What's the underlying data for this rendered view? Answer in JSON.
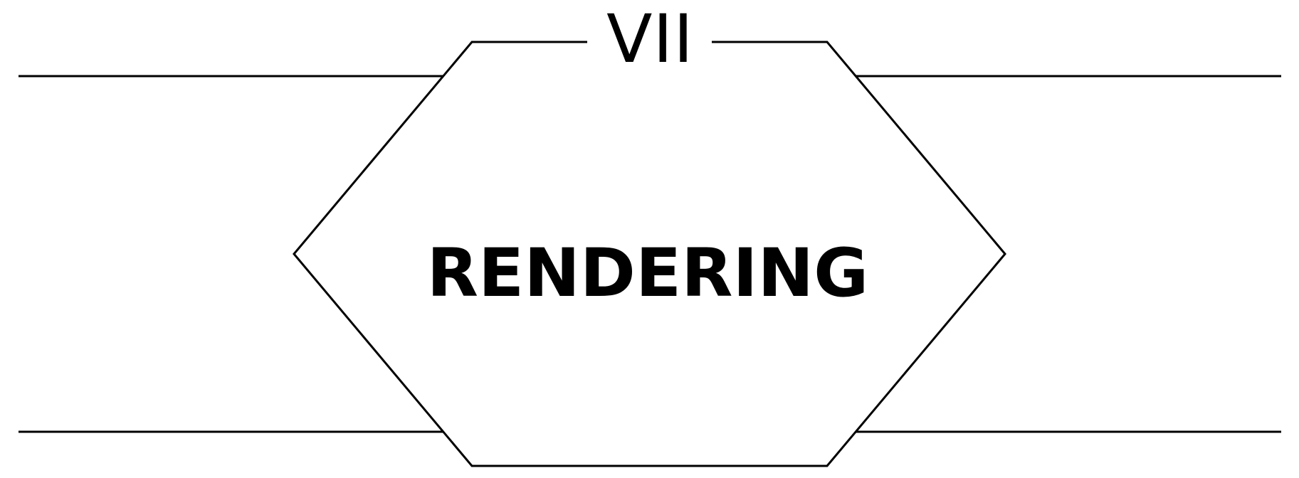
{
  "chapter": {
    "number": "VII",
    "title": "RENDERING"
  },
  "colors": {
    "ink": "#000000",
    "paper": "#ffffff"
  }
}
